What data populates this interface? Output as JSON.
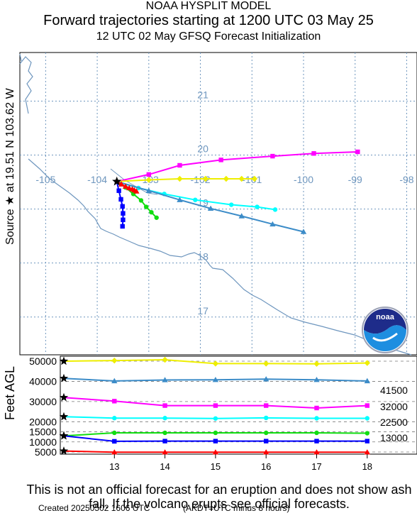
{
  "header": {
    "model": "NOAA HYSPLIT MODEL",
    "title": "Forward trajectories starting at 1200 UTC 03 May 25",
    "subtitle": "12 UTC 02 May     GFSQ  Forecast Initialization"
  },
  "source_label": "Source ★  at   19.51 N   103.62 W",
  "logo_text": "noaa",
  "colors": {
    "magenta": "#ff00ff",
    "yellow": "#eeee00",
    "cyan": "#00ffff",
    "steelblue": "#3c8cc8",
    "green": "#11dd11",
    "blue": "#0000ff",
    "red": "#ff0000",
    "coast": "#6e96be",
    "grid": "#6e96be"
  },
  "chart_data": [
    {
      "type": "line",
      "name": "map",
      "xlim": [
        -105.5,
        -97.8
      ],
      "ylim": [
        16.3,
        21.9
      ],
      "lon_ticks": [
        "-105",
        "-104",
        "-103",
        "-102",
        "-101",
        "-100",
        "-99",
        "-98"
      ],
      "lat_ticks": [
        "17",
        "18",
        "19",
        "20",
        "21"
      ],
      "source": {
        "lat": 19.51,
        "lon": -103.62
      },
      "series": [
        {
          "color": "magenta",
          "marker": "square",
          "lon": [
            -103.62,
            -103.0,
            -102.4,
            -101.6,
            -100.6,
            -99.8,
            -98.95
          ],
          "lat": [
            19.51,
            19.64,
            19.81,
            19.91,
            19.98,
            20.03,
            20.06
          ]
        },
        {
          "color": "yellow",
          "marker": "diamond",
          "lon": [
            -103.62,
            -103.0,
            -102.4,
            -101.9,
            -101.5,
            -101.2,
            -100.95
          ],
          "lat": [
            19.51,
            19.54,
            19.56,
            19.56,
            19.56,
            19.56,
            19.56
          ]
        },
        {
          "color": "cyan",
          "marker": "circle",
          "lon": [
            -103.62,
            -103.2,
            -102.7,
            -102.1,
            -101.4,
            -100.9,
            -100.55
          ],
          "lat": [
            19.51,
            19.39,
            19.28,
            19.17,
            19.08,
            19.04,
            18.99
          ]
        },
        {
          "color": "steelblue",
          "marker": "triangle",
          "lon": [
            -103.62,
            -103.0,
            -102.4,
            -101.8,
            -101.2,
            -100.6,
            -100.0
          ],
          "lat": [
            19.51,
            19.34,
            19.17,
            19.01,
            18.87,
            18.72,
            18.58
          ]
        },
        {
          "color": "green",
          "marker": "circle",
          "lon": [
            -103.62,
            -103.45,
            -103.3,
            -103.15,
            -103.05,
            -102.95,
            -102.85
          ],
          "lat": [
            19.51,
            19.4,
            19.28,
            19.16,
            19.04,
            18.94,
            18.84
          ]
        },
        {
          "color": "blue",
          "marker": "square",
          "lon": [
            -103.62,
            -103.58,
            -103.54,
            -103.51,
            -103.5,
            -103.5,
            -103.51
          ],
          "lat": [
            19.51,
            19.34,
            19.18,
            19.05,
            18.92,
            18.8,
            18.68
          ]
        },
        {
          "color": "red",
          "marker": "triangle",
          "lon": [
            -103.62,
            -103.53,
            -103.45,
            -103.38,
            -103.32,
            -103.28,
            -103.24
          ],
          "lat": [
            19.51,
            19.46,
            19.42,
            19.39,
            19.37,
            19.35,
            19.33
          ]
        }
      ]
    },
    {
      "type": "line",
      "name": "vertical-profile",
      "ylabel": "Feet AGL",
      "x_ticks": [
        "13",
        "14",
        "15",
        "16",
        "17",
        "18"
      ],
      "y_ticks": [
        "5000",
        "10000",
        "15000",
        "20000",
        "30000",
        "40000",
        "50000"
      ],
      "start_heights_labels": [
        "41500",
        "32000",
        "22500",
        "13000"
      ],
      "x": [
        12,
        13,
        14,
        15,
        16,
        17,
        18
      ],
      "series": [
        {
          "color": "yellow",
          "marker": "diamond",
          "values": [
            50000,
            50300,
            50700,
            48800,
            48800,
            48700,
            49100
          ]
        },
        {
          "color": "steelblue",
          "marker": "triangle",
          "values": [
            41500,
            40200,
            40700,
            40800,
            41100,
            40800,
            40200
          ]
        },
        {
          "color": "magenta",
          "marker": "square",
          "values": [
            32000,
            30200,
            28000,
            28000,
            28000,
            26800,
            28000
          ]
        },
        {
          "color": "cyan",
          "marker": "circle",
          "values": [
            22500,
            21800,
            21800,
            21600,
            21900,
            21700,
            21700
          ]
        },
        {
          "color": "green",
          "marker": "circle",
          "values": [
            13000,
            14500,
            14500,
            14500,
            14500,
            14500,
            14300
          ]
        },
        {
          "color": "blue",
          "marker": "square",
          "values": [
            13000,
            10300,
            10400,
            10400,
            10400,
            10400,
            10400
          ]
        },
        {
          "color": "red",
          "marker": "triangle",
          "values": [
            5500,
            4900,
            4900,
            4900,
            4900,
            4900,
            4900
          ]
        }
      ]
    }
  ],
  "disclaimer": "This is not an official forecast for an eruption and does not show ash fall. If the volcano erupts see official forecasts.",
  "footer": {
    "created": "Created 20250502 1606 UTC",
    "tz_note": "(AKDT=UTC minus 8 hours)"
  }
}
